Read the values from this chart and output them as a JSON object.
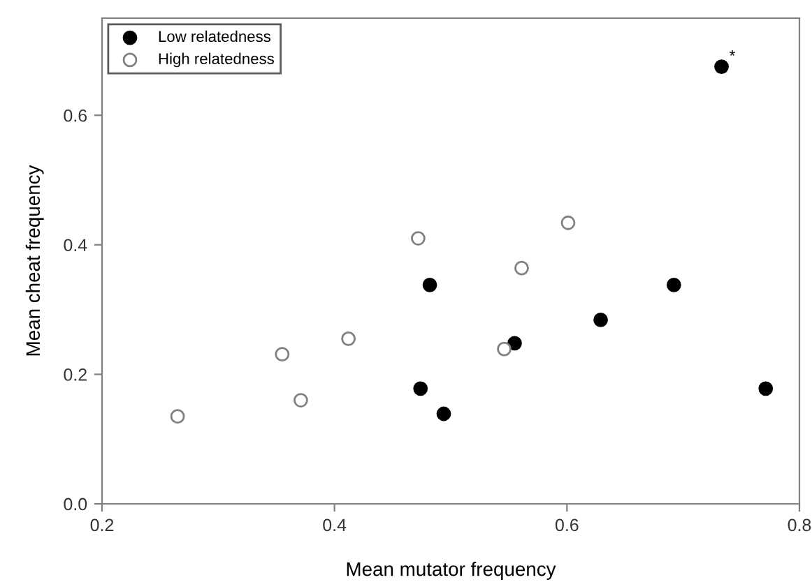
{
  "chart_data": {
    "type": "scatter",
    "xlabel": "Mean mutator frequency",
    "ylabel": "Mean cheat frequency",
    "xlim": [
      0.2,
      0.8
    ],
    "xticks": [
      0.2,
      0.4,
      0.6,
      0.8
    ],
    "ylim": [
      0,
      0.75
    ],
    "yticks": [
      {
        "value": 0,
        "label": "0.0"
      },
      0.2,
      0.4,
      0.6
    ],
    "grid": false,
    "legend": "top left",
    "marker": "circle",
    "annotations": [
      {
        "text": "*",
        "x": 0.733,
        "y": 0.675
      }
    ],
    "series": [
      {
        "name": "Low relatedness",
        "color": "#000000",
        "x": [
          0.482,
          0.474,
          0.494,
          0.555,
          0.629,
          0.692,
          0.733,
          0.771
        ],
        "values": [
          0.338,
          0.178,
          0.139,
          0.248,
          0.284,
          0.338,
          0.675,
          0.178
        ]
      },
      {
        "name": "High relatedness",
        "color": "#808080",
        "x": [
          0.265,
          0.355,
          0.371,
          0.412,
          0.472,
          0.546,
          0.561,
          0.601
        ],
        "values": [
          0.135,
          0.231,
          0.16,
          0.255,
          0.41,
          0.239,
          0.364,
          0.434
        ]
      }
    ]
  }
}
